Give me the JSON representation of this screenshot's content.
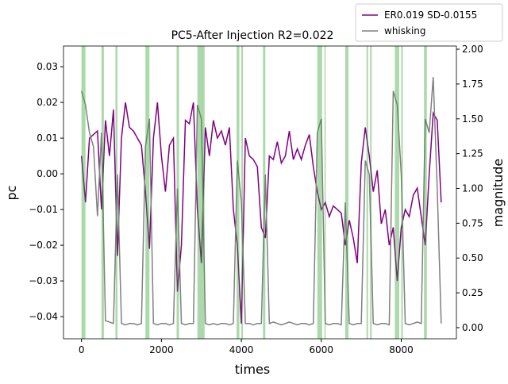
{
  "chart_data": {
    "type": "line",
    "title": "PC5-After Injection R2=0.022",
    "x_label": "times",
    "y_label": "pc",
    "y2_label": "magnitude",
    "x": [
      0,
      100,
      200,
      300,
      400,
      500,
      600,
      700,
      800,
      900,
      1000,
      1100,
      1200,
      1300,
      1400,
      1500,
      1600,
      1700,
      1800,
      1900,
      2000,
      2100,
      2200,
      2300,
      2400,
      2500,
      2600,
      2700,
      2800,
      2900,
      3000,
      3100,
      3200,
      3300,
      3400,
      3500,
      3600,
      3700,
      3800,
      3900,
      4000,
      4100,
      4200,
      4300,
      4400,
      4500,
      4600,
      4700,
      4800,
      4900,
      5000,
      5100,
      5200,
      5300,
      5400,
      5500,
      5600,
      5700,
      5800,
      5900,
      6000,
      6100,
      6200,
      6300,
      6400,
      6500,
      6600,
      6700,
      6800,
      6900,
      7000,
      7100,
      7200,
      7300,
      7400,
      7500,
      7600,
      7700,
      7800,
      7900,
      8000,
      8100,
      8200,
      8300,
      8400,
      8500,
      8600,
      8700,
      8800,
      8900,
      9000
    ],
    "series": [
      {
        "name": "ER0.019 SD-0.0155",
        "color": "#800080",
        "values": [
          0.005,
          -0.008,
          0.01,
          0.011,
          0.012,
          -0.01,
          0.015,
          0.005,
          0.018,
          -0.023,
          0.01,
          0.02,
          0.013,
          0.012,
          0.01,
          0.008,
          -0.005,
          -0.021,
          0.01,
          0.02,
          0.005,
          -0.005,
          0.008,
          0.01,
          -0.033,
          -0.02,
          0.015,
          0.014,
          0.02,
          -0.01,
          -0.025,
          0.013,
          0.005,
          0.015,
          0.01,
          0.012,
          0.008,
          0.013,
          -0.01,
          -0.02,
          -0.042,
          0.01,
          0.005,
          0.004,
          0.002,
          -0.015,
          -0.018,
          0.005,
          0.004,
          0.009,
          0.003,
          0.005,
          0.012,
          0.004,
          0.007,
          0.004,
          0.008,
          0.011,
          0.002,
          -0.005,
          -0.01,
          -0.008,
          -0.012,
          -0.009,
          -0.01,
          -0.011,
          -0.02,
          -0.013,
          -0.018,
          -0.025,
          0.003,
          0.013,
          0.005,
          -0.005,
          0.001,
          -0.014,
          -0.01,
          -0.02,
          -0.015,
          -0.03,
          -0.015,
          -0.01,
          -0.012,
          -0.006,
          -0.004,
          -0.012,
          -0.02,
          0.0,
          0.017,
          0.015,
          -0.008
        ]
      },
      {
        "name": "whisking",
        "color": "#808080",
        "axis": "y2",
        "values": [
          1.7,
          1.6,
          1.4,
          1.3,
          0.8,
          1.4,
          0.05,
          0.04,
          0.03,
          1.1,
          0.03,
          0.02,
          0.03,
          0.03,
          0.02,
          0.03,
          1.3,
          1.5,
          0.03,
          0.02,
          0.03,
          0.03,
          0.02,
          0.03,
          1.0,
          0.03,
          0.02,
          0.03,
          0.03,
          1.6,
          1.5,
          0.03,
          0.02,
          0.03,
          0.02,
          0.03,
          0.03,
          0.02,
          0.03,
          1.2,
          0.9,
          0.03,
          0.03,
          0.02,
          0.03,
          0.03,
          1.1,
          0.03,
          0.04,
          0.03,
          0.02,
          0.03,
          0.04,
          0.03,
          0.02,
          0.03,
          0.03,
          0.02,
          0.03,
          1.4,
          1.5,
          0.03,
          0.02,
          0.03,
          0.03,
          0.02,
          0.9,
          0.03,
          0.02,
          0.03,
          0.03,
          1.2,
          1.1,
          0.03,
          0.02,
          0.03,
          0.03,
          0.02,
          1.7,
          1.6,
          1.1,
          0.03,
          0.02,
          0.03,
          0.04,
          0.03,
          1.5,
          1.4,
          1.8,
          1.0,
          0.03
        ]
      }
    ],
    "spans": [
      [
        0,
        100
      ],
      [
        500,
        560
      ],
      [
        850,
        900
      ],
      [
        1600,
        1700
      ],
      [
        2380,
        2440
      ],
      [
        2900,
        3080
      ],
      [
        3880,
        3950
      ],
      [
        4000,
        4040
      ],
      [
        4540,
        4600
      ],
      [
        5900,
        6020
      ],
      [
        6080,
        6110
      ],
      [
        6600,
        6680
      ],
      [
        7130,
        7170
      ],
      [
        7220,
        7260
      ],
      [
        7840,
        7950
      ],
      [
        8000,
        8040
      ],
      [
        8570,
        8640
      ]
    ],
    "span_color": "#2ca02c",
    "xlim": [
      -450,
      9380
    ],
    "ylim": [
      -0.0462,
      0.0358
    ],
    "y2lim": [
      -0.08,
      2.023
    ],
    "xticks": [
      0,
      2000,
      4000,
      6000,
      8000
    ],
    "yticks": [
      {
        "value": -0.04,
        "label": "−0.04"
      },
      {
        "value": -0.03,
        "label": "−0.03"
      },
      {
        "value": -0.02,
        "label": "−0.02"
      },
      {
        "value": -0.01,
        "label": "−0.01"
      },
      {
        "value": 0,
        "label": "0.00"
      },
      {
        "value": 0.01,
        "label": "0.01"
      },
      {
        "value": 0.02,
        "label": "0.02"
      },
      {
        "value": 0.03,
        "label": "0.03"
      }
    ],
    "y2ticks": [
      {
        "value": 0,
        "label": "0.00"
      },
      {
        "value": 0.25,
        "label": "0.25"
      },
      {
        "value": 0.5,
        "label": "0.50"
      },
      {
        "value": 0.75,
        "label": "0.75"
      },
      {
        "value": 1,
        "label": "1.00"
      },
      {
        "value": 1.25,
        "label": "1.25"
      },
      {
        "value": 1.5,
        "label": "1.50"
      },
      {
        "value": 1.75,
        "label": "1.75"
      },
      {
        "value": 2,
        "label": "2.00"
      }
    ],
    "legend": "upper right"
  }
}
